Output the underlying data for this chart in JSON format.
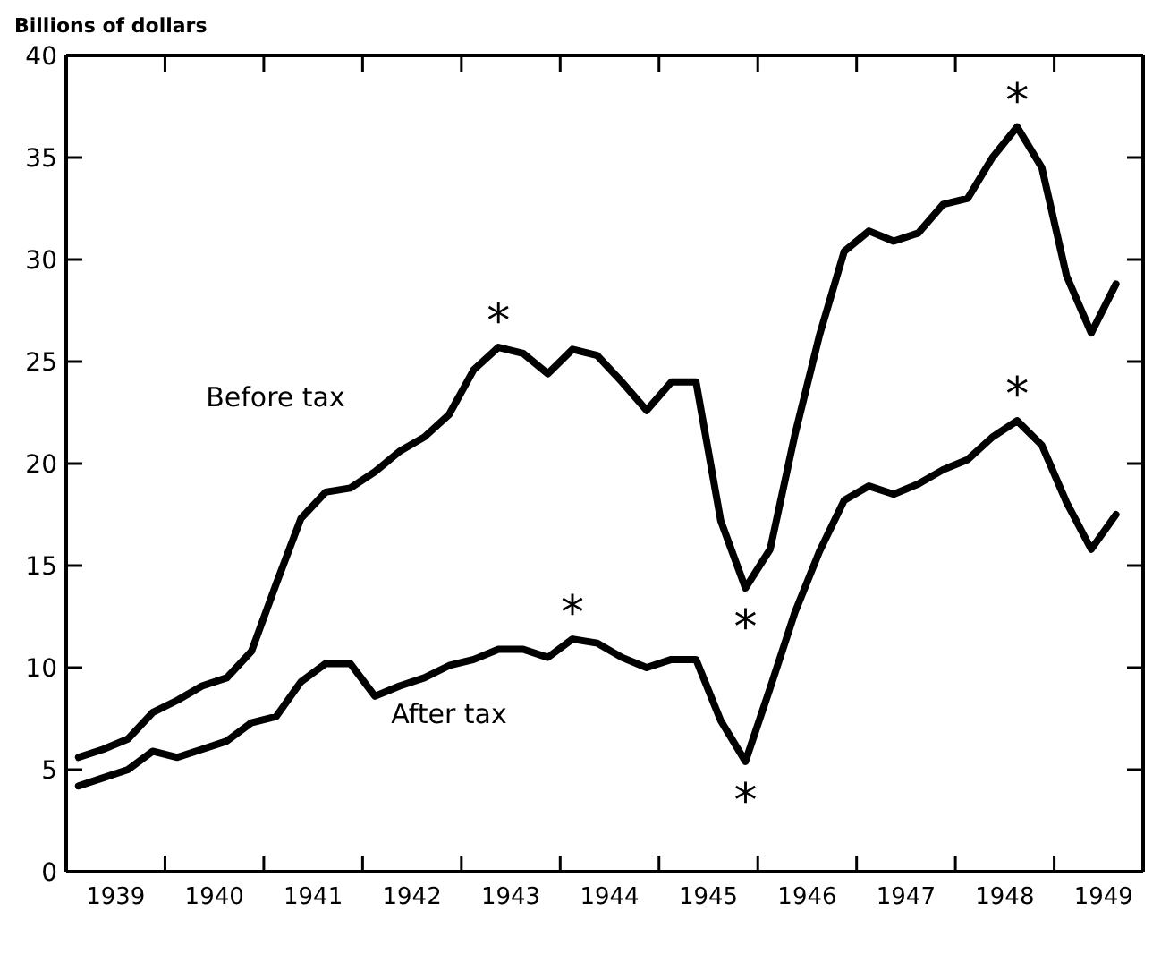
{
  "chart_data": {
    "type": "line",
    "ylabel": "Billions of dollars",
    "x": [
      1939.125,
      1939.375,
      1939.625,
      1939.875,
      1940.125,
      1940.375,
      1940.625,
      1940.875,
      1941.125,
      1941.375,
      1941.625,
      1941.875,
      1942.125,
      1942.375,
      1942.625,
      1942.875,
      1943.125,
      1943.375,
      1943.625,
      1943.875,
      1944.125,
      1944.375,
      1944.625,
      1944.875,
      1945.125,
      1945.375,
      1945.625,
      1945.875,
      1946.125,
      1946.375,
      1946.625,
      1946.875,
      1947.125,
      1947.375,
      1947.625,
      1947.875,
      1948.125,
      1948.375,
      1948.625,
      1948.875,
      1949.125,
      1949.375,
      1949.625
    ],
    "series": [
      {
        "name": "Before tax",
        "color": "#000000",
        "values": [
          5.6,
          6.0,
          6.5,
          7.8,
          8.4,
          9.1,
          9.5,
          10.8,
          14.1,
          17.3,
          18.6,
          18.8,
          19.6,
          20.6,
          21.3,
          22.4,
          24.6,
          25.7,
          25.4,
          24.4,
          25.6,
          25.3,
          24.0,
          22.6,
          24.0,
          24.0,
          17.2,
          13.9,
          15.8,
          21.4,
          26.3,
          30.4,
          31.4,
          30.9,
          31.3,
          32.7,
          33.0,
          35.0,
          36.5,
          34.5,
          29.2,
          26.4,
          28.8
        ]
      },
      {
        "name": "After tax",
        "color": "#000000",
        "values": [
          4.2,
          4.6,
          5.0,
          5.9,
          5.6,
          6.0,
          6.4,
          7.3,
          7.6,
          9.3,
          10.2,
          10.2,
          8.6,
          9.1,
          9.5,
          10.1,
          10.4,
          10.9,
          10.9,
          10.5,
          11.4,
          11.2,
          10.5,
          10.0,
          10.4,
          10.4,
          7.4,
          5.4,
          9.0,
          12.7,
          15.7,
          18.2,
          18.9,
          18.5,
          19.0,
          19.7,
          20.2,
          21.3,
          22.1,
          20.9,
          18.1,
          15.8,
          17.5
        ]
      }
    ],
    "annotations": [
      {
        "text": "*",
        "x": 1943.375,
        "y": 25.7
      },
      {
        "text": "*",
        "x": 1945.875,
        "y": 13.9
      },
      {
        "text": "*",
        "x": 1948.625,
        "y": 36.5
      },
      {
        "text": "*",
        "x": 1944.125,
        "y": 11.4
      },
      {
        "text": "*",
        "x": 1945.875,
        "y": 5.4
      },
      {
        "text": "*",
        "x": 1948.625,
        "y": 22.1
      }
    ],
    "xlim": [
      1939,
      1949.9
    ],
    "xticks": [
      {
        "value": 1939.5,
        "label": "1939"
      },
      {
        "value": 1940,
        "label": null
      },
      {
        "value": 1940.5,
        "label": "1940"
      },
      {
        "value": 1941,
        "label": null
      },
      {
        "value": 1941.5,
        "label": "1941"
      },
      {
        "value": 1942,
        "label": null
      },
      {
        "value": 1942.5,
        "label": "1942"
      },
      {
        "value": 1943,
        "label": null
      },
      {
        "value": 1943.5,
        "label": "1943"
      },
      {
        "value": 1944,
        "label": null
      },
      {
        "value": 1944.5,
        "label": "1944"
      },
      {
        "value": 1945,
        "label": null
      },
      {
        "value": 1945.5,
        "label": "1945"
      },
      {
        "value": 1946,
        "label": null
      },
      {
        "value": 1946.5,
        "label": "1946"
      },
      {
        "value": 1947,
        "label": null
      },
      {
        "value": 1947.5,
        "label": "1947"
      },
      {
        "value": 1948,
        "label": null
      },
      {
        "value": 1948.5,
        "label": "1948"
      },
      {
        "value": 1949,
        "label": null
      },
      {
        "value": 1949.5,
        "label": "1949"
      }
    ],
    "ylim": [
      0,
      40
    ],
    "yticks": [
      0,
      5,
      10,
      15,
      20,
      25,
      30,
      35,
      40
    ],
    "grid": false,
    "legend": false,
    "marker": "none",
    "line_style": "solid"
  }
}
